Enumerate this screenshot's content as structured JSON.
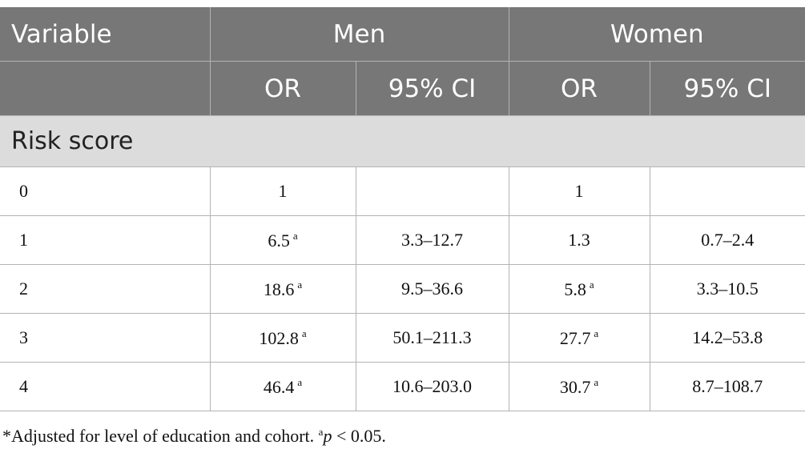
{
  "header": {
    "variable": "Variable",
    "men": "Men",
    "women": "Women",
    "or": "OR",
    "ci": "95% CI"
  },
  "section": "Risk score",
  "rows": [
    {
      "label": "0",
      "men_or": "1",
      "men_or_sup": "",
      "men_ci": "",
      "women_or": "1",
      "women_or_sup": "",
      "women_ci": ""
    },
    {
      "label": "1",
      "men_or": "6.5",
      "men_or_sup": "a",
      "men_ci": "3.3–12.7",
      "women_or": "1.3",
      "women_or_sup": "",
      "women_ci": "0.7–2.4"
    },
    {
      "label": "2",
      "men_or": "18.6",
      "men_or_sup": "a",
      "men_ci": "9.5–36.6",
      "women_or": "5.8",
      "women_or_sup": "a",
      "women_ci": "3.3–10.5"
    },
    {
      "label": "3",
      "men_or": "102.8",
      "men_or_sup": "a",
      "men_ci": "50.1–211.3",
      "women_or": "27.7",
      "women_or_sup": "a",
      "women_ci": "14.2–53.8"
    },
    {
      "label": "4",
      "men_or": "46.4",
      "men_or_sup": "a",
      "men_ci": "10.6–203.0",
      "women_or": "30.7",
      "women_or_sup": "a",
      "women_ci": "8.7–108.7"
    }
  ],
  "footnote": {
    "text": "*Adjusted for level of education and cohort. ",
    "sup": "a",
    "p": "p",
    "rest": " < 0.05."
  }
}
